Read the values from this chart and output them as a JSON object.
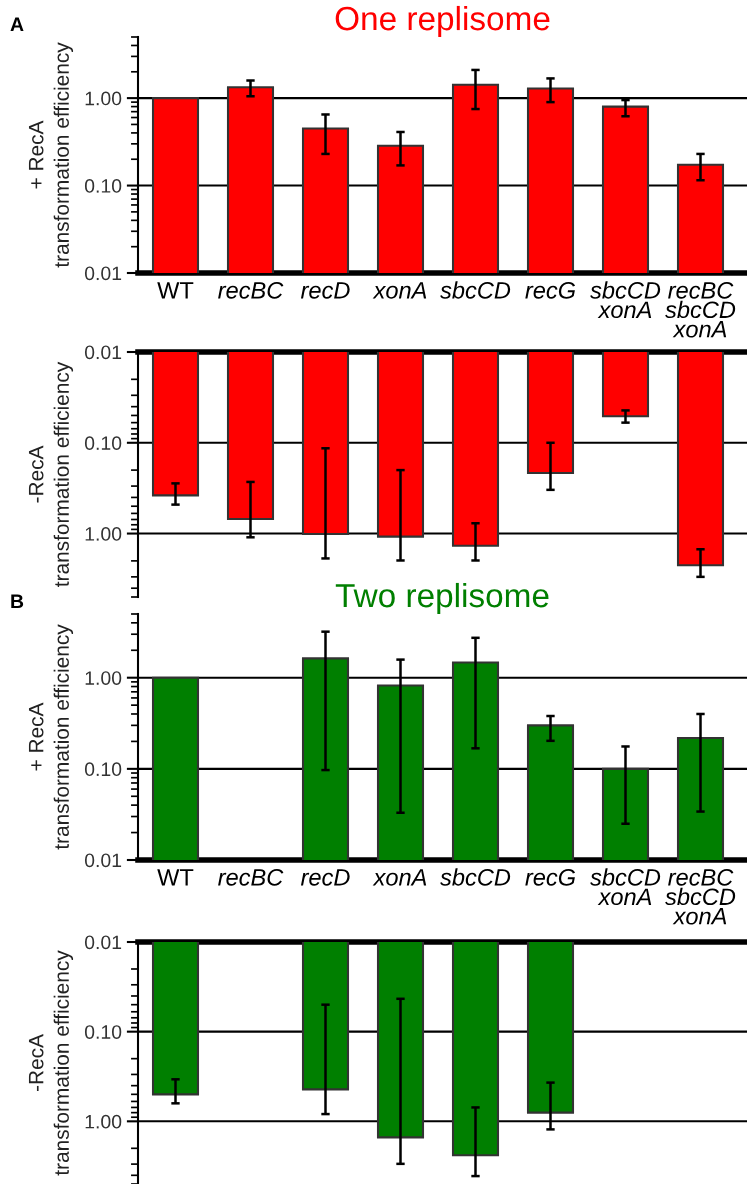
{
  "chart_data": [
    {
      "type": "bar",
      "title": "One replisome",
      "ylabel": "+ RecA\ntransformation efficiency",
      "annotations": [
        "A"
      ],
      "log": true,
      "grid": "y",
      "categories": [
        "WT",
        "recBC",
        "recD",
        "xonA",
        "sbcCD",
        "recG",
        "sbcCD\nxonA",
        "recBC\nsbcCD\nxonA"
      ],
      "series": [
        {
          "color": "#ff0000",
          "values": [
            1.0,
            1.33,
            0.45,
            0.285,
            1.42,
            1.29,
            0.8,
            0.173
          ],
          "errors": [
            null,
            [
              1.05,
              1.59
            ],
            [
              0.23,
              0.65
            ],
            [
              0.17,
              0.41
            ],
            [
              0.75,
              2.1
            ],
            [
              0.9,
              1.68
            ],
            [
              0.62,
              0.95
            ],
            [
              0.115,
              0.23
            ]
          ]
        }
      ],
      "ylim": [
        0.01,
        5
      ],
      "yticks": [
        {
          "value": 0.01,
          "label": "0.01"
        },
        {
          "value": 0.1,
          "label": "0.10"
        },
        {
          "value": 1,
          "label": "1.00"
        }
      ]
    },
    {
      "type": "bar",
      "ylabel": "-RecA\ntransformation efficiency",
      "log": true,
      "grid": "y",
      "tick_labels": "y",
      "categories": [
        null,
        null,
        null,
        null,
        null,
        null,
        null,
        null
      ],
      "series": [
        {
          "color": "#ff0000",
          "values": [
            0.38,
            0.69,
            1.01,
            1.08,
            1.36,
            0.215,
            0.051,
            2.23
          ],
          "errors": [
            [
              0.28,
              0.48
            ],
            [
              0.27,
              1.1
            ],
            [
              0.115,
              1.88
            ],
            [
              0.2,
              1.98
            ],
            [
              0.77,
              1.98
            ],
            [
              0.1,
              0.33
            ],
            [
              0.044,
              0.06
            ],
            [
              1.49,
              3.0
            ]
          ]
        }
      ],
      "ylim": [
        5,
        0.01
      ],
      "yticks": [
        {
          "value": 0.01,
          "label": "0.01"
        },
        {
          "value": 0.1,
          "label": "0.10"
        },
        {
          "value": 1,
          "label": "1.00"
        }
      ]
    },
    {
      "type": "bar",
      "title": "Two replisome",
      "ylabel": "+ RecA\ntransformation efficiency",
      "annotations": [
        "B"
      ],
      "log": true,
      "grid": "y",
      "categories": [
        "WT",
        "recBC",
        "recD",
        "xonA",
        "sbcCD",
        "recG",
        "sbcCD\nxonA",
        "recBC\nsbcCD\nxonA"
      ],
      "series": [
        {
          "color": "#007f00",
          "values": [
            1.0,
            null,
            1.63,
            0.82,
            1.47,
            0.3,
            0.1,
            0.218
          ],
          "errors": [
            null,
            null,
            [
              0.097,
              3.2
            ],
            [
              0.033,
              1.58
            ],
            [
              0.168,
              2.74
            ],
            [
              0.203,
              0.38
            ],
            [
              0.025,
              0.176
            ],
            [
              0.034,
              0.4
            ]
          ]
        }
      ],
      "ylim": [
        0.01,
        5
      ],
      "yticks": [
        {
          "value": 0.01,
          "label": "0.01"
        },
        {
          "value": 0.1,
          "label": "0.10"
        },
        {
          "value": 1,
          "label": "1.00"
        }
      ]
    },
    {
      "type": "bar",
      "ylabel": "-RecA\ntransformation efficiency",
      "log": true,
      "grid": "y",
      "tick_labels": "y",
      "categories": [
        null,
        null,
        null,
        null,
        null,
        null,
        null,
        null
      ],
      "series": [
        {
          "color": "#007f00",
          "values": [
            0.5,
            null,
            0.44,
            1.51,
            2.39,
            0.8,
            null,
            null
          ],
          "errors": [
            [
              0.34,
              0.63
            ],
            null,
            [
              0.05,
              0.83
            ],
            [
              0.043,
              2.98
            ],
            [
              0.7,
              4.08
            ],
            [
              0.37,
              1.23
            ],
            null,
            null
          ]
        }
      ],
      "ylim": [
        5,
        0.01
      ],
      "yticks": [
        {
          "value": 0.01,
          "label": "0.01"
        },
        {
          "value": 0.1,
          "label": "0.10"
        },
        {
          "value": 1,
          "label": "1.00"
        }
      ]
    }
  ]
}
